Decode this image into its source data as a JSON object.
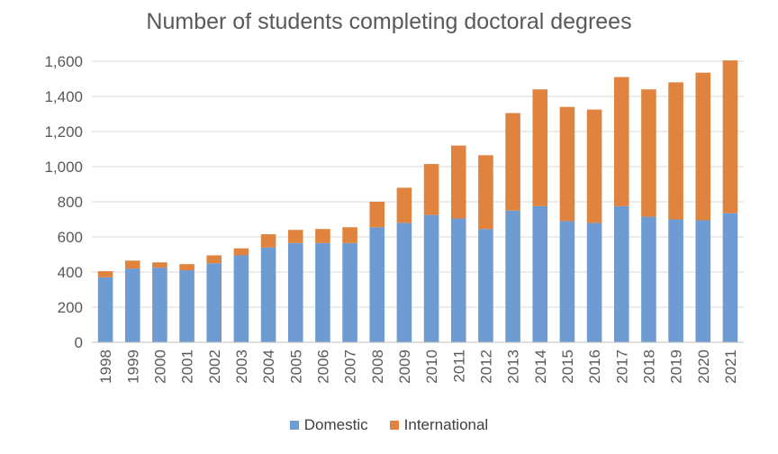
{
  "chart_data": {
    "type": "bar",
    "stacked": true,
    "title": "Number of students completing doctoral degrees",
    "xlabel": "",
    "ylabel": "",
    "ylim": [
      0,
      1600
    ],
    "yticks": [
      0,
      200,
      400,
      600,
      800,
      1000,
      1200,
      1400,
      1600
    ],
    "ytick_labels": [
      "0",
      "200",
      "400",
      "600",
      "800",
      "1,000",
      "1,200",
      "1,400",
      "1,600"
    ],
    "grid": true,
    "legend_position": "bottom",
    "categories": [
      "1998",
      "1999",
      "2000",
      "2001",
      "2002",
      "2003",
      "2004",
      "2005",
      "2006",
      "2007",
      "2008",
      "2009",
      "2010",
      "2011",
      "2012",
      "2013",
      "2014",
      "2015",
      "2016",
      "2017",
      "2018",
      "2019",
      "2020",
      "2021"
    ],
    "series": [
      {
        "name": "Domestic",
        "color": "#6E9BD2",
        "values": [
          370,
          420,
          425,
          410,
          450,
          495,
          540,
          565,
          565,
          565,
          655,
          680,
          725,
          705,
          645,
          750,
          775,
          690,
          680,
          775,
          715,
          700,
          695,
          735
        ]
      },
      {
        "name": "International",
        "color": "#E0833E",
        "values": [
          35,
          45,
          30,
          35,
          45,
          40,
          75,
          75,
          80,
          90,
          145,
          200,
          290,
          415,
          420,
          555,
          665,
          650,
          645,
          735,
          725,
          780,
          840,
          870
        ]
      }
    ]
  }
}
